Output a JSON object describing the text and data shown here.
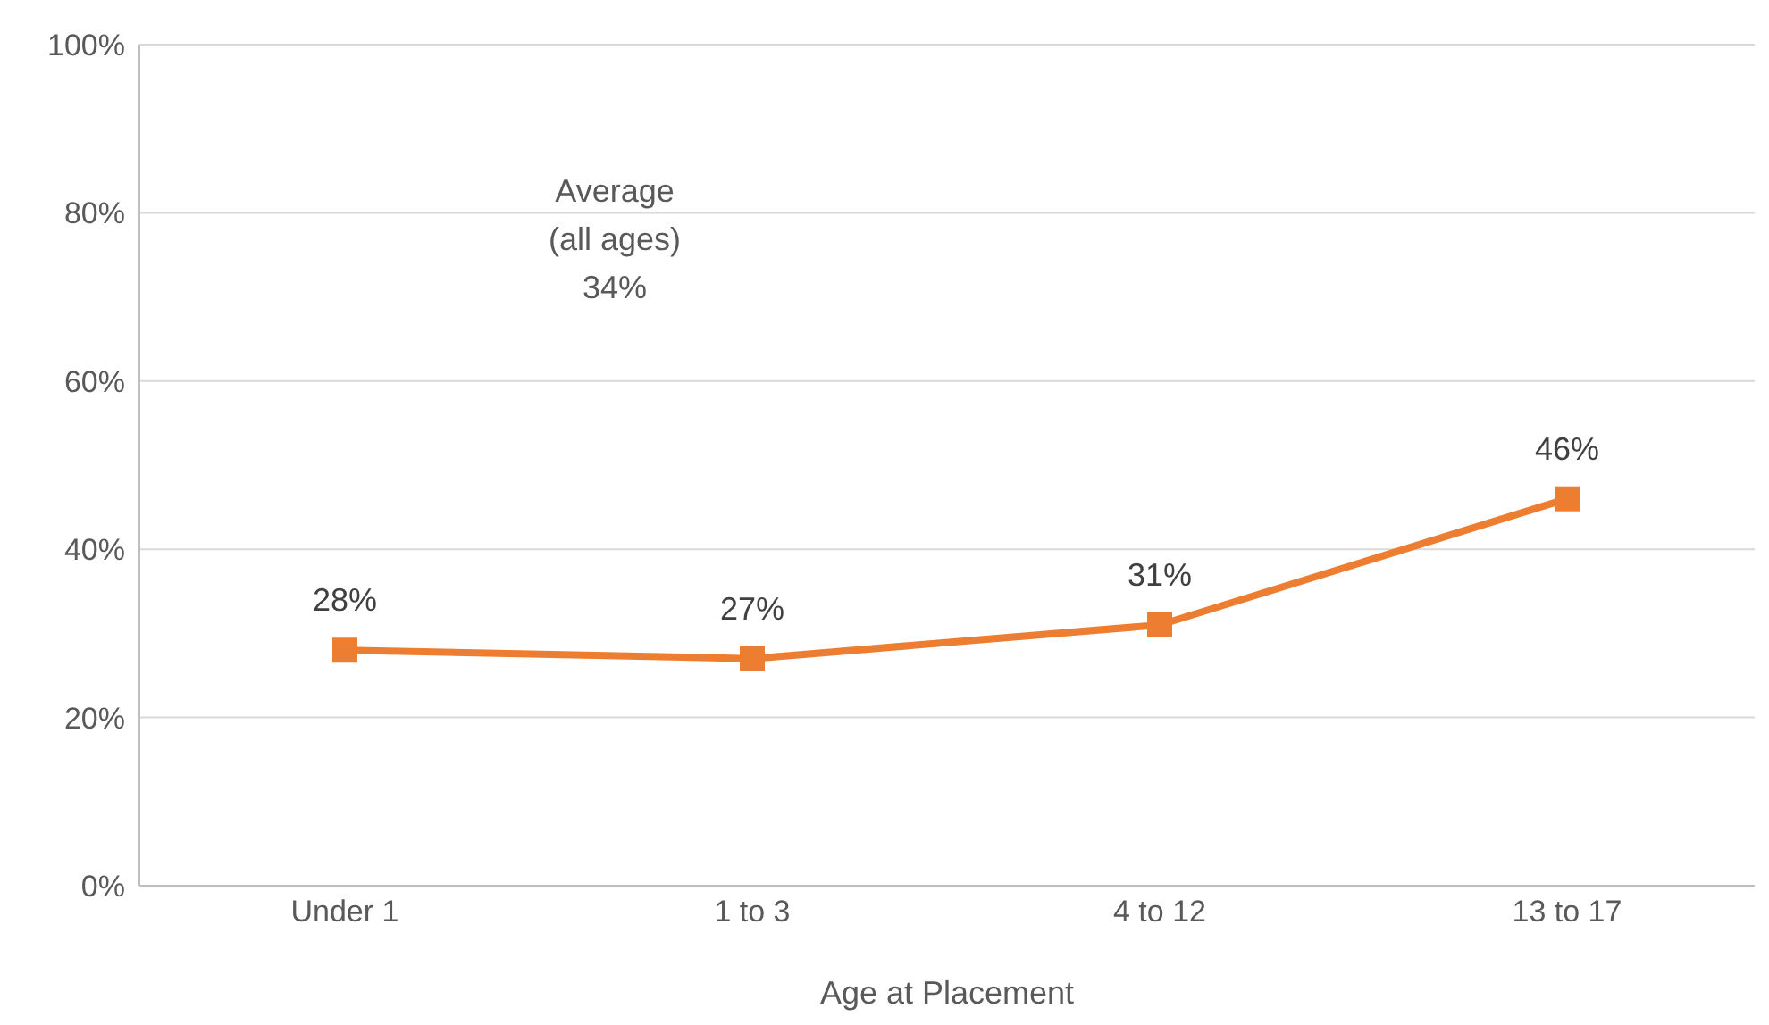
{
  "chart_data": {
    "type": "line",
    "xlabel": "Age at Placement",
    "categories": [
      "Under 1",
      "1 to 3",
      "4 to 12",
      "13 to 17"
    ],
    "series": [
      {
        "color": "#ed7d31",
        "values": [
          28,
          27,
          31,
          46
        ],
        "value_labels": [
          "28%",
          "27%",
          "31%",
          "46%"
        ]
      }
    ],
    "ylim": [
      0,
      100
    ],
    "yticks": [
      {
        "value": 0,
        "label": "0%"
      },
      {
        "value": 20,
        "label": "20%"
      },
      {
        "value": 40,
        "label": "40%"
      },
      {
        "value": 60,
        "label": "60%"
      },
      {
        "value": 80,
        "label": "80%"
      },
      {
        "value": 100,
        "label": "100%"
      }
    ],
    "grid": "y",
    "marker": "square",
    "line_style": "solid",
    "annotations": [
      "Average\n(all ages)\n34%"
    ]
  }
}
